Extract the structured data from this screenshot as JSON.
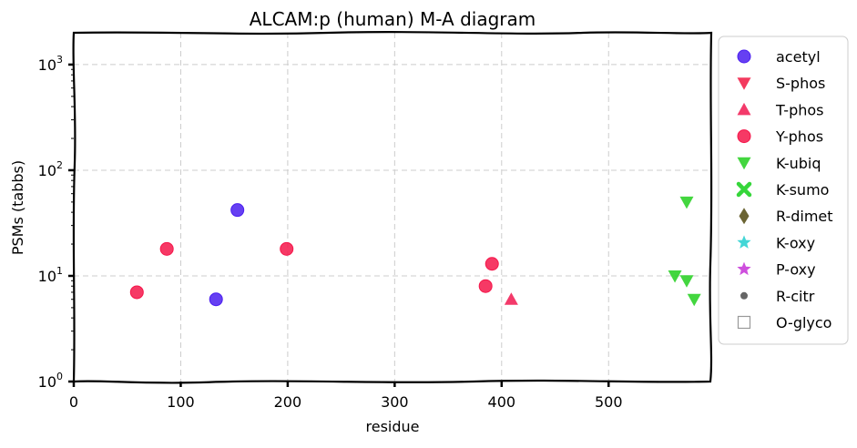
{
  "chart_data": {
    "type": "scatter",
    "title": "ALCAM:p (human) M-A diagram",
    "xlabel": "residue",
    "ylabel": "PSMs (tabbs)",
    "xlim": [
      0,
      596
    ],
    "ylim": [
      1,
      2000
    ],
    "yscale": "log",
    "grid": true,
    "legend_position": "outside-right",
    "x_ticks": [
      0,
      100,
      200,
      300,
      400,
      500
    ],
    "x_tick_labels": [
      "0",
      "100",
      "200",
      "300",
      "400",
      "500"
    ],
    "y_ticks": [
      1,
      10,
      100,
      1000
    ],
    "y_tick_labels": [
      {
        "base": "10",
        "exp": "0"
      },
      {
        "base": "10",
        "exp": "1"
      },
      {
        "base": "10",
        "exp": "2"
      },
      {
        "base": "10",
        "exp": "3"
      }
    ],
    "series": [
      {
        "name": "acetyl",
        "marker": "circle",
        "color": "#4b1ff0",
        "points": [
          [
            133,
            6
          ],
          [
            153,
            42
          ]
        ]
      },
      {
        "name": "S-phos",
        "marker": "triangle-down",
        "color": "#f2254d",
        "points": []
      },
      {
        "name": "T-phos",
        "marker": "triangle-up",
        "color": "#f2255a",
        "points": [
          [
            409,
            6
          ]
        ]
      },
      {
        "name": "Y-phos",
        "marker": "circle",
        "color": "#f5164a",
        "points": [
          [
            59,
            7
          ],
          [
            87,
            18
          ],
          [
            199,
            18
          ],
          [
            385,
            8
          ],
          [
            391,
            13
          ]
        ]
      },
      {
        "name": "K-ubiq",
        "marker": "triangle-down",
        "color": "#2fd12a",
        "points": [
          [
            573,
            50
          ],
          [
            562,
            10
          ],
          [
            573,
            9
          ],
          [
            580,
            6
          ]
        ]
      },
      {
        "name": "K-sumo",
        "marker": "x",
        "color": "#35d63a",
        "points": []
      },
      {
        "name": "R-dimet",
        "marker": "diamond",
        "color": "#6b6433",
        "points": []
      },
      {
        "name": "K-oxy",
        "marker": "star",
        "color": "#2fd2d2",
        "points": []
      },
      {
        "name": "P-oxy",
        "marker": "star",
        "color": "#c93cd9",
        "points": []
      },
      {
        "name": "R-citr",
        "marker": "dot",
        "color": "#666666",
        "points": []
      },
      {
        "name": "O-glyco",
        "marker": "square-open",
        "color": "#999999",
        "points": []
      }
    ]
  }
}
